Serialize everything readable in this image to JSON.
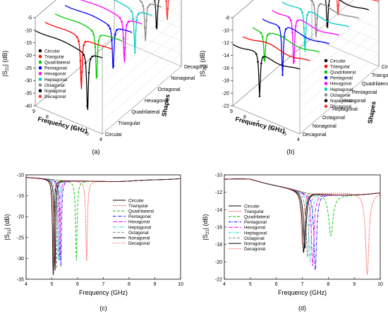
{
  "palette": {
    "Circular": "#000000",
    "Triangular": "#ff0000",
    "Quadrilateral": "#00cc00",
    "Pentagonal": "#0000ff",
    "Hexagonal": "#ff00ff",
    "Heptagonal": "#00cccc",
    "Octagonal": "#888888",
    "Nonagonal": "#000000",
    "Decagonal": "#ff3333"
  },
  "shapes": [
    "Circular",
    "Triangular",
    "Quadrilateral",
    "Pentagonal",
    "Hexagonal",
    "Heptagonal",
    "Octagonal",
    "Nonagonal",
    "Decagonal"
  ],
  "chart_data": [
    {
      "panel": "(a)",
      "type": "line",
      "projection": "3d-waterfall",
      "ylabel": "|S21| (dB)",
      "xlabel": "Frequency (GHz)",
      "zlabel": "Shapes",
      "x_ticks": [
        9,
        8,
        7,
        6,
        5,
        4
      ],
      "y_ticks": [
        -5,
        -10,
        -15,
        -20,
        -25,
        -30,
        -35,
        -40
      ],
      "z_ticks": [
        "Circular",
        "Triangular",
        "Quadrilateral",
        "Hexagonal",
        "Octagonal",
        "Nonagonal",
        "Decagonal"
      ],
      "legend": [
        "Circular",
        "Triangular",
        "Quadrilateral",
        "Pentagonal",
        "Hexagonal",
        "Heptagonal",
        "Octagonal",
        "Nonagonal",
        "Decagonal"
      ],
      "legend_position": "left",
      "series": [
        {
          "name": "Circular",
          "resonance_ghz": 5.1,
          "min_db": -34
        },
        {
          "name": "Triangular",
          "resonance_ghz": 6.3,
          "min_db": -31
        },
        {
          "name": "Quadrilateral",
          "resonance_ghz": 5.9,
          "min_db": -30
        },
        {
          "name": "Pentagonal",
          "resonance_ghz": 5.4,
          "min_db": -28
        },
        {
          "name": "Hexagonal",
          "resonance_ghz": 5.3,
          "min_db": -28
        },
        {
          "name": "Heptagonal",
          "resonance_ghz": 5.25,
          "min_db": -27
        },
        {
          "name": "Octagonal",
          "resonance_ghz": 5.2,
          "min_db": -26
        },
        {
          "name": "Nonagonal",
          "resonance_ghz": 5.1,
          "min_db": -25
        },
        {
          "name": "Decagonal",
          "resonance_ghz": 5.05,
          "min_db": -24
        }
      ]
    },
    {
      "panel": "(b)",
      "type": "line",
      "projection": "3d-waterfall",
      "ylabel": "|S21| (dB)",
      "xlabel": "Frequency (GHz)",
      "zlabel": "Shapes",
      "x_ticks": [
        9,
        8,
        7,
        6,
        5,
        4
      ],
      "y_ticks": [
        -8,
        -10,
        -12,
        -14,
        -16,
        -18,
        -20,
        -22
      ],
      "z_ticks": [
        "Decagonal",
        "Nonagonal",
        "Octagonal",
        "Heptagonal",
        "Hexagonal",
        "Pentagonal",
        "Quadrilateral",
        "Triangular",
        "Circular"
      ],
      "legend": [
        "Circular",
        "Triangular",
        "Quadrilateral",
        "Pentagonal",
        "Hexagonal",
        "Heptagonal",
        "Octagonal",
        "Nonagonal",
        "Decagonal"
      ],
      "legend_position": "right",
      "series": [
        {
          "name": "Circular",
          "resonance_ghz": 7.0,
          "min_db": -19
        },
        {
          "name": "Triangular",
          "resonance_ghz": 9.5,
          "min_db": -21
        },
        {
          "name": "Quadrilateral",
          "resonance_ghz": 8.1,
          "min_db": -17
        },
        {
          "name": "Pentagonal",
          "resonance_ghz": 7.5,
          "min_db": -20
        },
        {
          "name": "Hexagonal",
          "resonance_ghz": 7.4,
          "min_db": -20
        },
        {
          "name": "Heptagonal",
          "resonance_ghz": 7.3,
          "min_db": -19
        },
        {
          "name": "Octagonal",
          "resonance_ghz": 7.2,
          "min_db": -18
        },
        {
          "name": "Nonagonal",
          "resonance_ghz": 7.1,
          "min_db": -18
        },
        {
          "name": "Decagonal",
          "resonance_ghz": 7.05,
          "min_db": -17
        }
      ]
    },
    {
      "panel": "(c)",
      "type": "line",
      "xlabel": "Frequency (GHz)",
      "ylabel": "|S21| (dB)",
      "xlim": [
        4,
        10
      ],
      "ylim": [
        -35,
        -10
      ],
      "x_ticks": [
        4,
        5,
        6,
        7,
        8,
        9,
        10
      ],
      "y_ticks": [
        -10,
        -15,
        -20,
        -25,
        -30,
        -35
      ],
      "legend_position": "right",
      "series": [
        {
          "name": "Circular",
          "f0": 5.05,
          "min_db": -34,
          "width": 0.06,
          "style": "solid"
        },
        {
          "name": "Triangular",
          "f0": 6.35,
          "min_db": -31,
          "width": 0.07,
          "style": "dotted"
        },
        {
          "name": "Quadrilateral",
          "f0": 5.95,
          "min_db": -30.5,
          "width": 0.07,
          "style": "dashed"
        },
        {
          "name": "Pentagonal",
          "f0": 5.35,
          "min_db": -32,
          "width": 0.06,
          "style": "dashdot"
        },
        {
          "name": "Hexagonal",
          "f0": 5.3,
          "min_db": -31,
          "width": 0.06,
          "style": "longdash"
        },
        {
          "name": "Heptagonal",
          "f0": 5.25,
          "min_db": -31,
          "width": 0.06,
          "style": "dashdotdot"
        },
        {
          "name": "Octagonal",
          "f0": 5.18,
          "min_db": -33,
          "width": 0.06,
          "style": "dashed"
        },
        {
          "name": "Nonagonal",
          "f0": 5.12,
          "min_db": -33.5,
          "width": 0.06,
          "style": "solid"
        },
        {
          "name": "Decagonal",
          "f0": 5.08,
          "min_db": -33.8,
          "width": 0.06,
          "style": "dotted"
        }
      ]
    },
    {
      "panel": "(d)",
      "type": "line",
      "xlabel": "Frequency (GHz)",
      "ylabel": "|S21| (dB)",
      "xlim": [
        4,
        10
      ],
      "ylim": [
        -22,
        -10
      ],
      "x_ticks": [
        4,
        5,
        6,
        7,
        8,
        9,
        10
      ],
      "y_ticks": [
        -10,
        -12,
        -14,
        -16,
        -18,
        -20,
        -22
      ],
      "legend_position": "left",
      "series": [
        {
          "name": "Circular",
          "f0": 7.05,
          "min_db": -19,
          "width": 0.12,
          "style": "solid"
        },
        {
          "name": "Triangular",
          "f0": 9.5,
          "min_db": -21.5,
          "width": 0.15,
          "style": "dotted"
        },
        {
          "name": "Quadrilateral",
          "f0": 8.1,
          "min_db": -17,
          "width": 0.2,
          "style": "dashed"
        },
        {
          "name": "Pentagonal",
          "f0": 7.5,
          "min_db": -21,
          "width": 0.12,
          "style": "dashdot"
        },
        {
          "name": "Hexagonal",
          "f0": 7.4,
          "min_db": -20.5,
          "width": 0.12,
          "style": "longdash"
        },
        {
          "name": "Heptagonal",
          "f0": 7.3,
          "min_db": -20,
          "width": 0.12,
          "style": "dashdotdot"
        },
        {
          "name": "Octagonal",
          "f0": 7.2,
          "min_db": -19.5,
          "width": 0.12,
          "style": "dashed"
        },
        {
          "name": "Nonagonal",
          "f0": 7.1,
          "min_db": -18.5,
          "width": 0.12,
          "style": "solid"
        },
        {
          "name": "Decagonal",
          "f0": 7.0,
          "min_db": -18,
          "width": 0.12,
          "style": "dotted"
        }
      ]
    }
  ]
}
